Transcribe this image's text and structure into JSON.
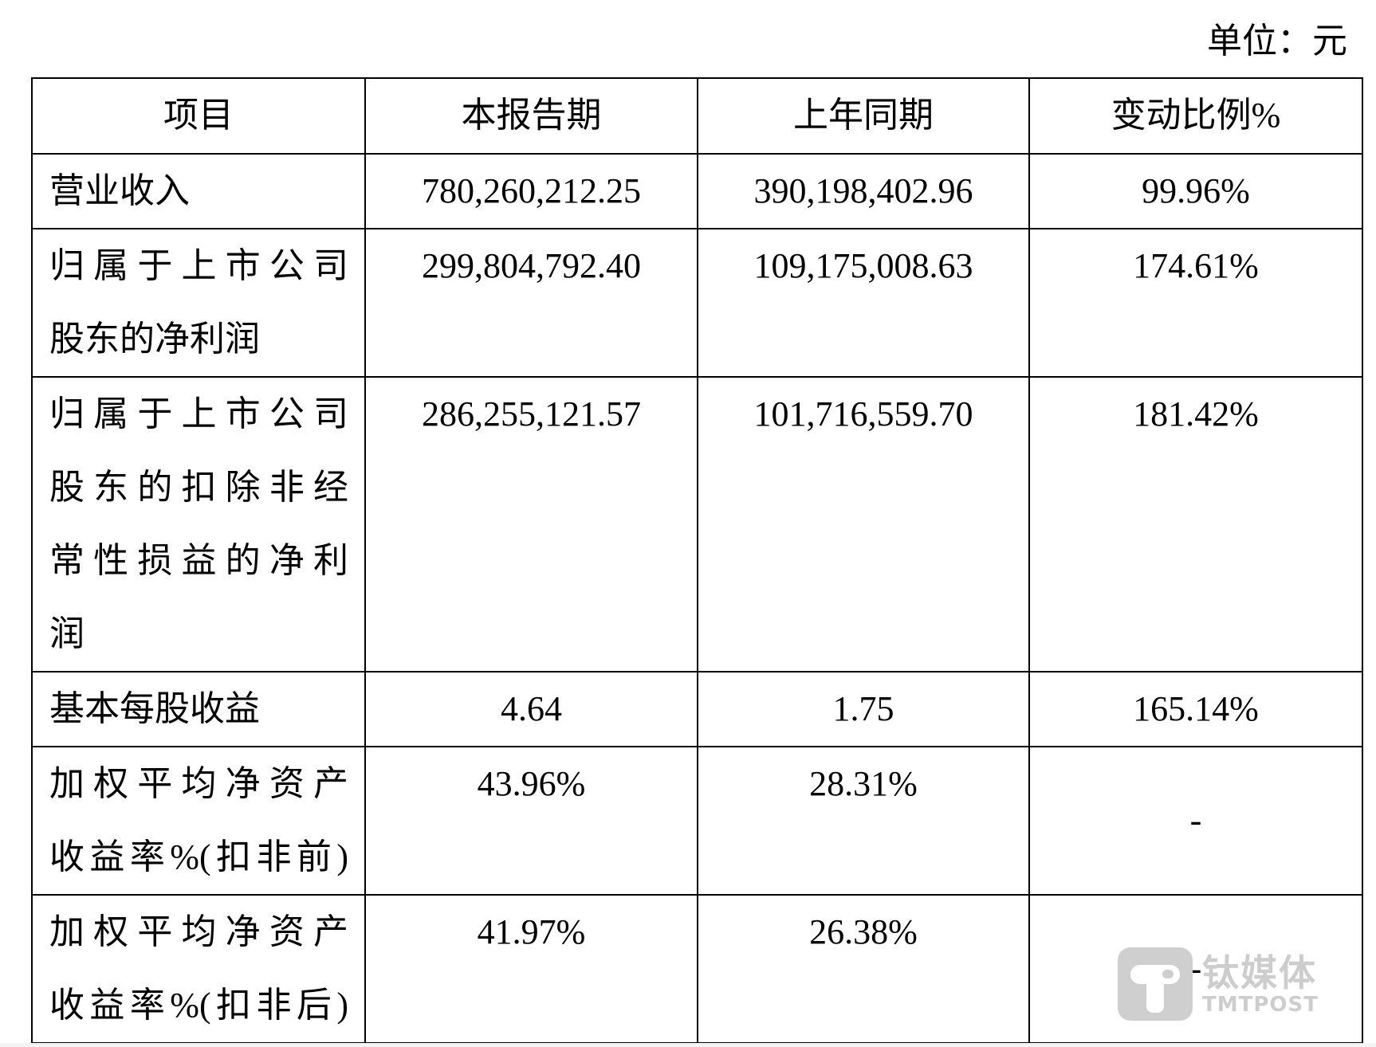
{
  "unit": "单位：元",
  "headers": [
    "项目",
    "本报告期",
    "上年同期",
    "变动比例%"
  ],
  "rows": [
    {
      "label_lines": [
        "营业收入"
      ],
      "current": "780,260,212.25",
      "prior": "390,198,402.96",
      "change": "99.96%"
    },
    {
      "label_lines": [
        "归属于上市公司",
        "股东的净利润"
      ],
      "current": "299,804,792.40",
      "prior": "109,175,008.63",
      "change": "174.61%"
    },
    {
      "label_lines": [
        "归属于上市公司",
        "股东的扣除非经",
        "常性损益的净利",
        "润"
      ],
      "current": "286,255,121.57",
      "prior": "101,716,559.70",
      "change": "181.42%"
    },
    {
      "label_lines": [
        "基本每股收益"
      ],
      "current": "4.64",
      "prior": "1.75",
      "change": "165.14%"
    },
    {
      "label_lines": [
        "加权平均净资产",
        "收益率%(扣非前)"
      ],
      "current": "43.96%",
      "prior": "28.31%",
      "change": "-"
    },
    {
      "label_lines": [
        "加权平均净资产",
        "收益率%(扣非后)"
      ],
      "current": "41.97%",
      "prior": "26.38%",
      "change": "-"
    }
  ],
  "watermark": {
    "cn": "钛媒体",
    "en": "TMTPOST",
    "color": "#cdcdcd"
  }
}
